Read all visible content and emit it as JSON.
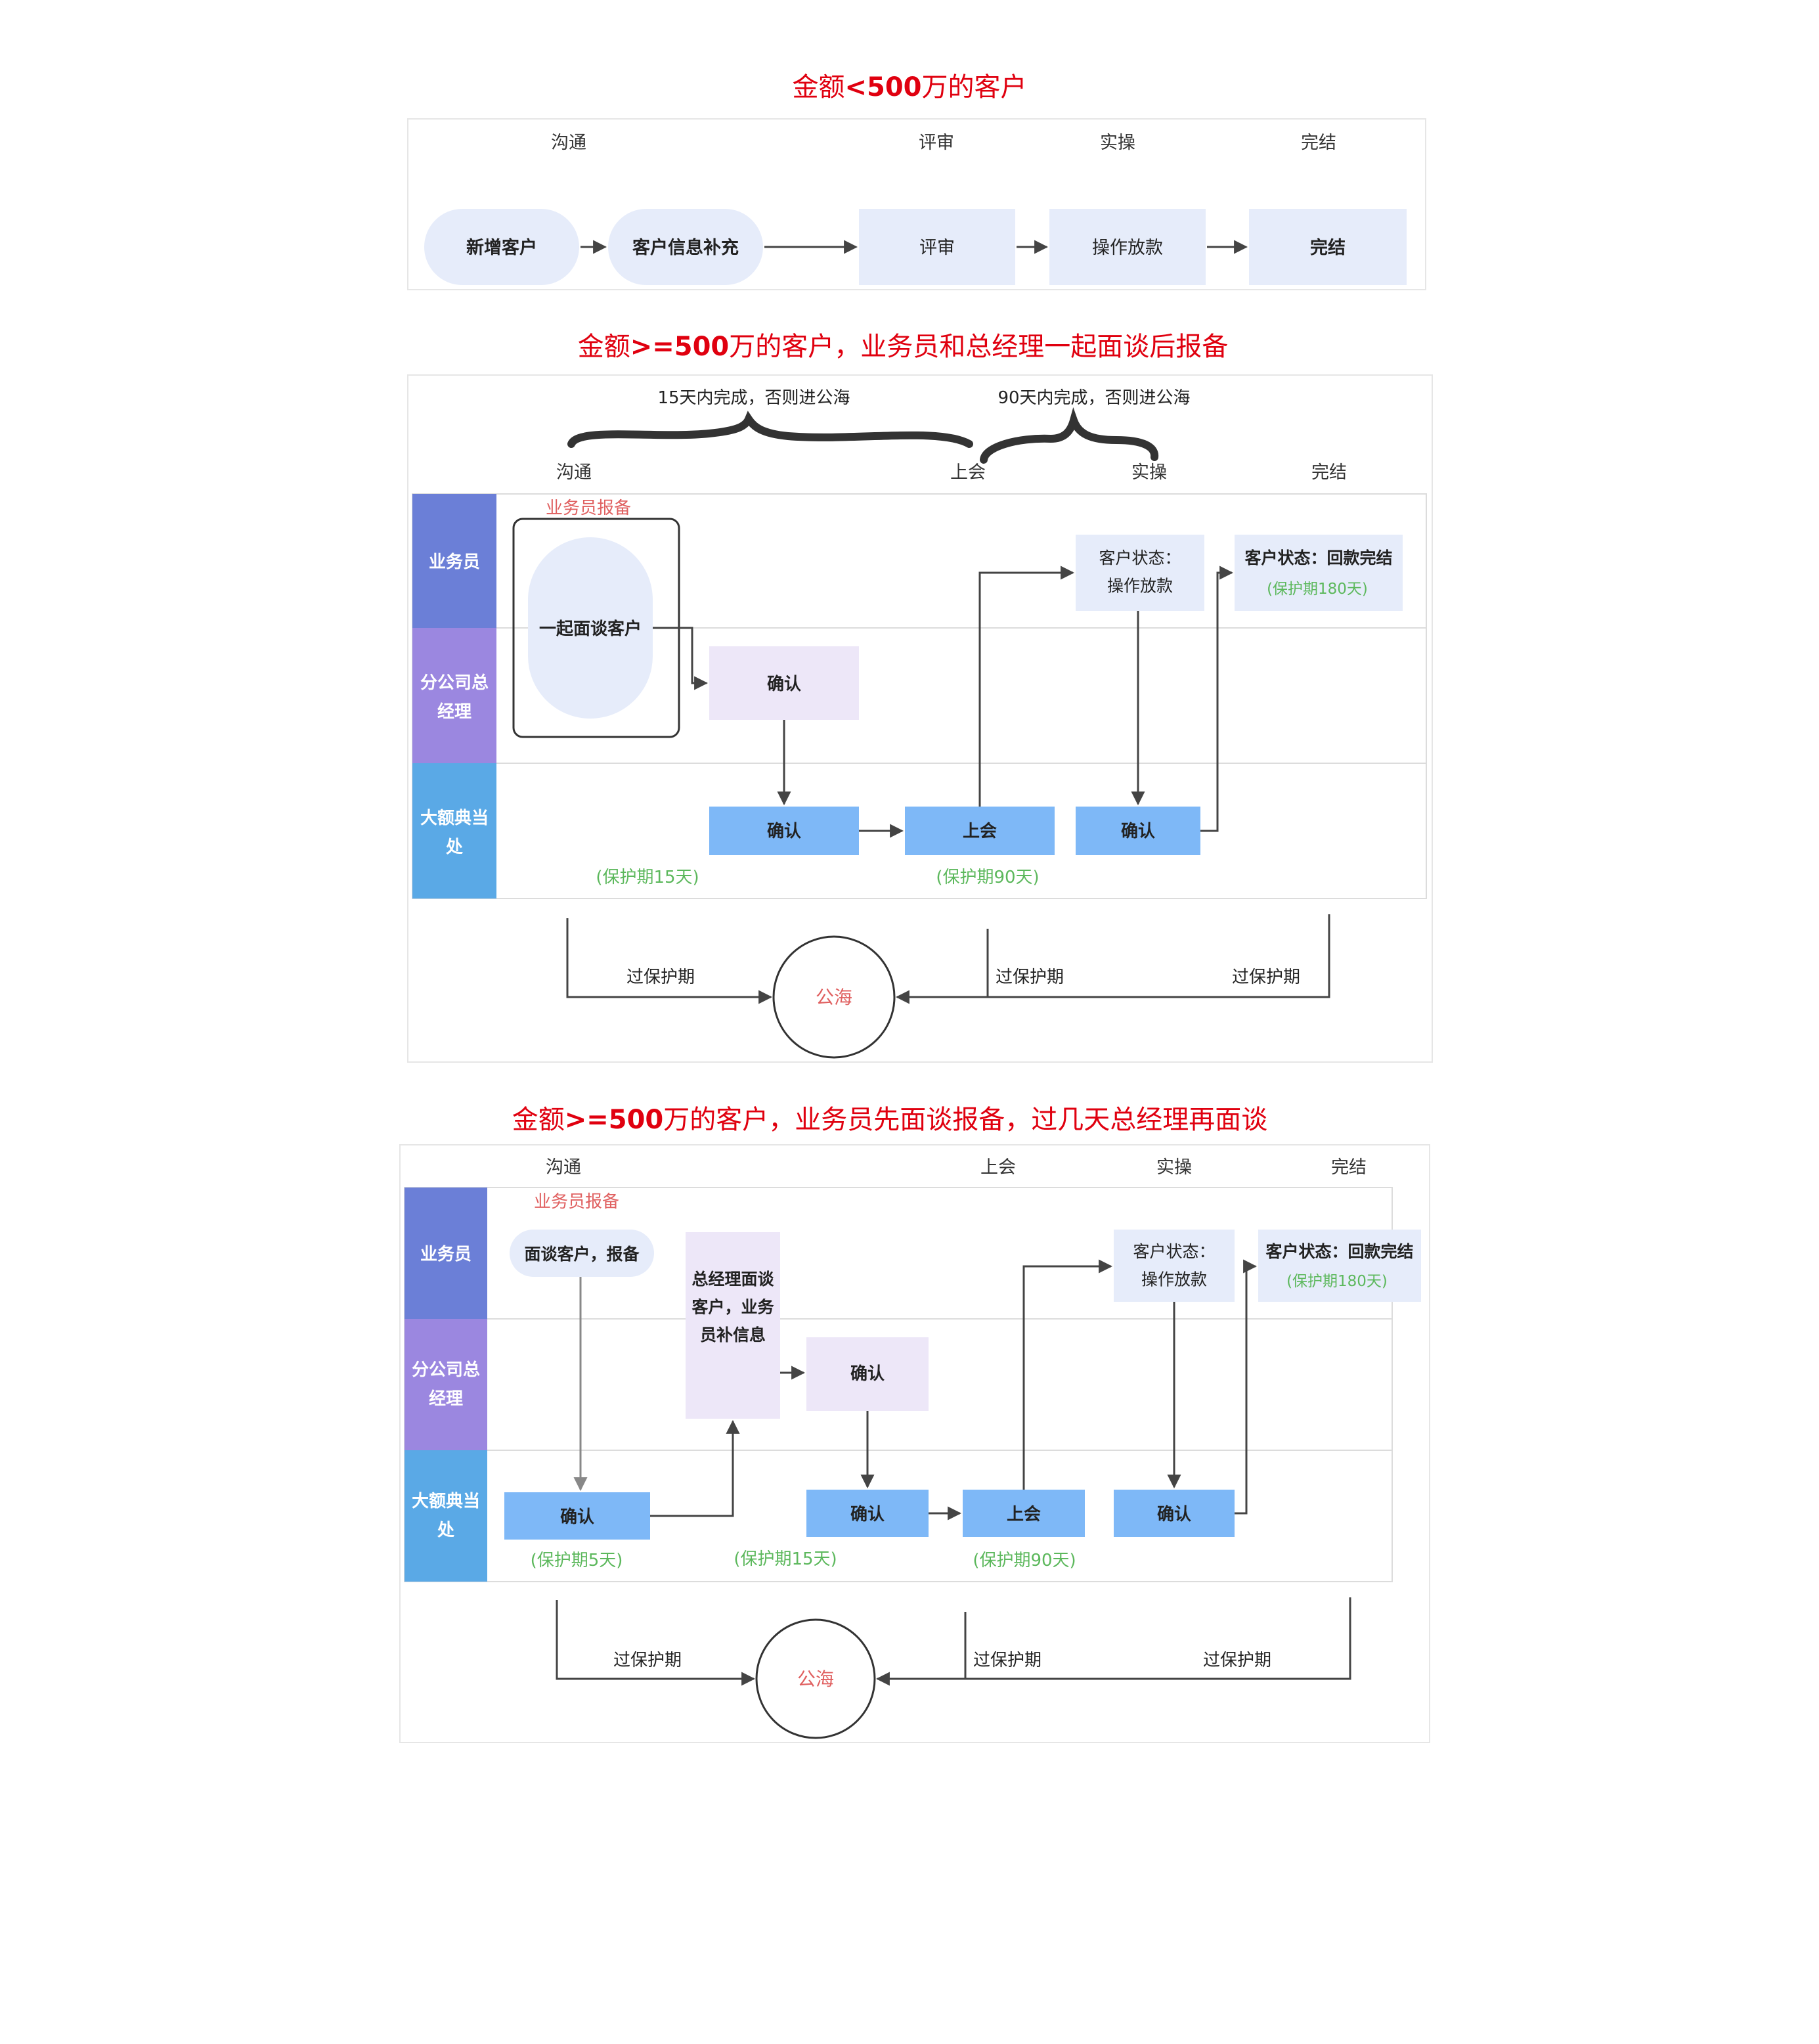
{
  "diagram1": {
    "title_pre": "金额",
    "title_bold": "<500",
    "title_post": "万的客户",
    "stages": [
      "沟通",
      "评审",
      "实操",
      "完结"
    ],
    "nodes": [
      "新增客户",
      "客户信息补充",
      "评审",
      "操作放款",
      "完结"
    ]
  },
  "diagram2": {
    "title_pre": "金额",
    "title_bold": ">=500",
    "title_post": "万的客户，业务员和总经理一起面谈后报备",
    "note_15": "15天内完成，否则进公海",
    "note_90": "90天内完成，否则进公海",
    "stages": [
      "沟通",
      "上会",
      "实操",
      "完结"
    ],
    "lanes": [
      "业务员",
      "分公司总\n经理",
      "大额典当\n处"
    ],
    "report_label": "业务员报备",
    "meet_together": "一起面谈客户",
    "confirm": "确认",
    "meeting": "上会",
    "status_loan": "客户状态：\n操作放款",
    "status_done": "客户状态：回款完结",
    "protect_180": "(保护期180天)",
    "protect_15": "(保护期15天)",
    "protect_90": "(保护期90天)",
    "expire": "过保护期",
    "pool": "公海"
  },
  "diagram3": {
    "title_pre": "金额",
    "title_bold": ">=500",
    "title_post": "万的客户，业务员先面谈报备，过几天总经理再面谈",
    "stages": [
      "沟通",
      "上会",
      "实操",
      "完结"
    ],
    "lanes": [
      "业务员",
      "分公司总\n经理",
      "大额典当\n处"
    ],
    "report_label": "业务员报备",
    "interview": "面谈客户，报备",
    "gm_interview": "总经理面谈\n客户，业务\n员补信息",
    "confirm": "确认",
    "meeting": "上会",
    "status_loan": "客户状态：\n操作放款",
    "status_done": "客户状态：回款完结",
    "protect_180": "(保护期180天)",
    "protect_5": "(保护期5天)",
    "protect_15": "(保护期15天)",
    "protect_90": "(保护期90天)",
    "expire": "过保护期",
    "pool": "公海"
  },
  "colors": {
    "title_red": "#e0000f",
    "lane_sales": "#6b7fd7",
    "lane_gm": "#9b87e0",
    "lane_big": "#5aa9e6",
    "node_blue": "#7eb8f7",
    "node_lavender": "#ede7f8",
    "node_pale": "#e6ecfa",
    "protect_green": "#5cb85c",
    "pool_red": "#e06060"
  }
}
